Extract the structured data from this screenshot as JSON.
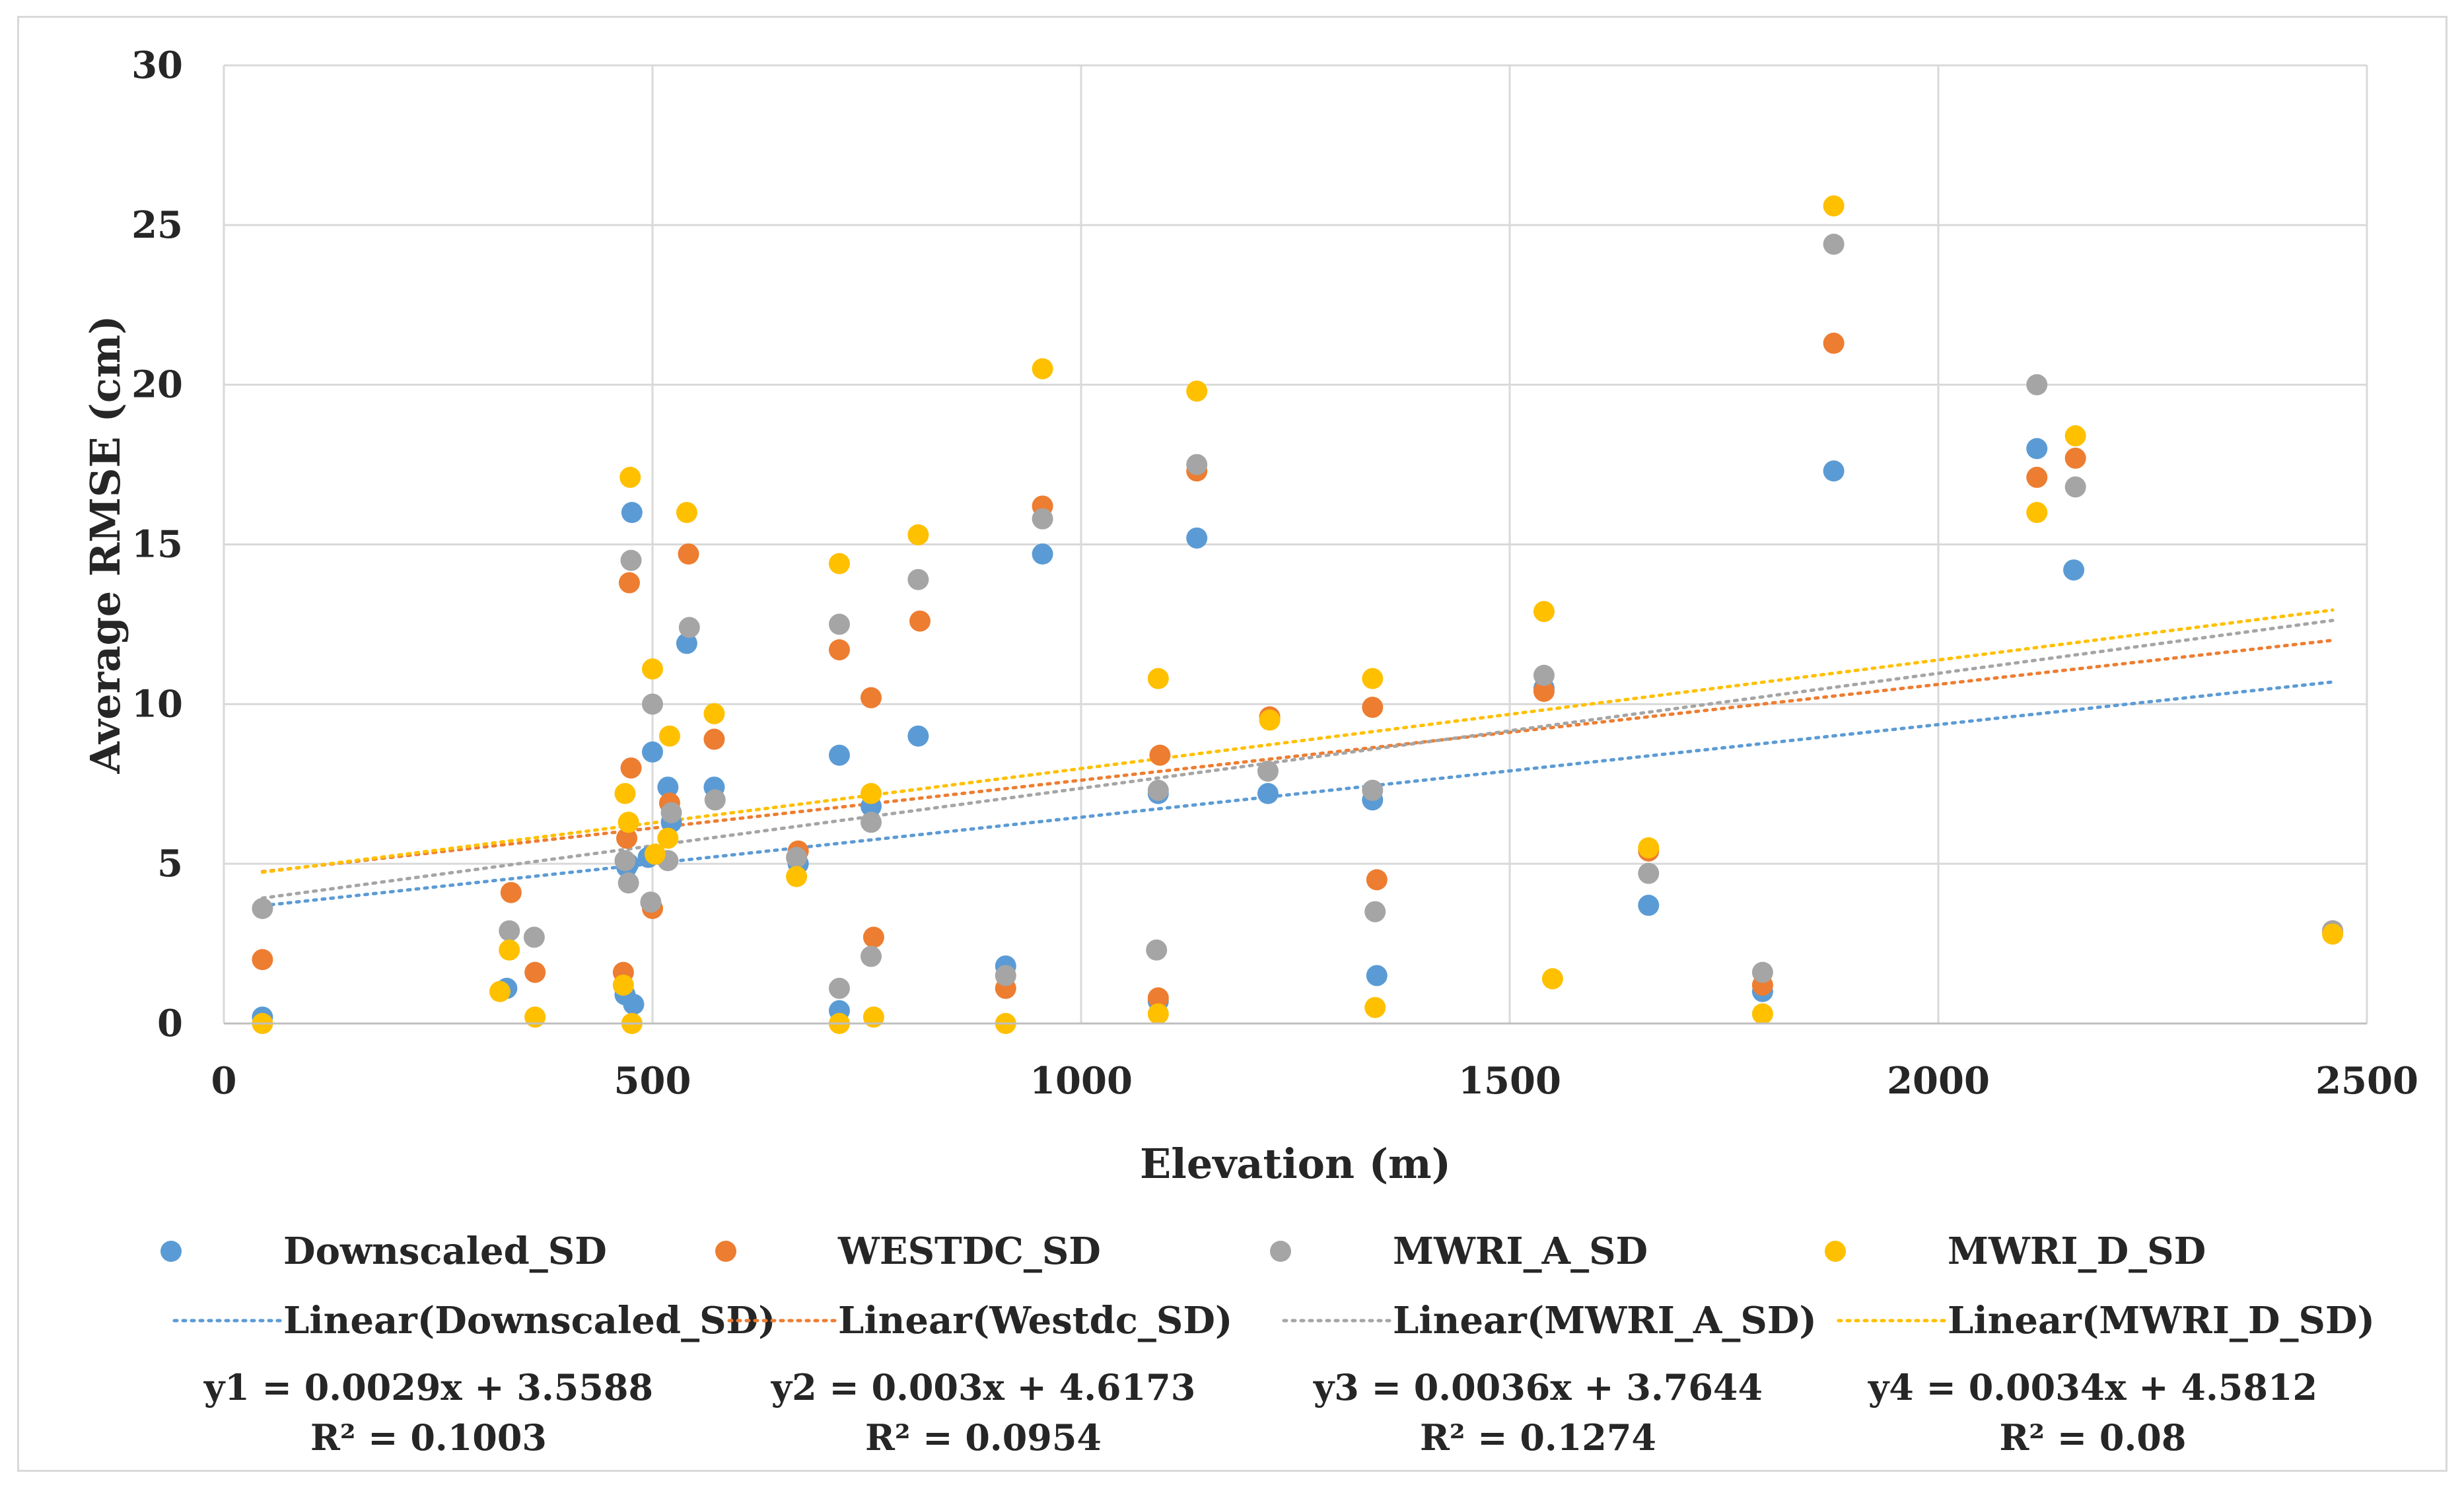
{
  "chart_data": {
    "type": "scatter",
    "title": "",
    "xlabel": "Elevation (m)",
    "ylabel": "Average RMSE (cm)",
    "xlim": [
      0,
      2500
    ],
    "ylim": [
      0,
      30
    ],
    "x_ticks": [
      0,
      500,
      1000,
      1500,
      2000,
      2500
    ],
    "y_ticks": [
      0,
      5,
      10,
      15,
      20,
      25,
      30
    ],
    "grid": true,
    "legend_position": "bottom",
    "series": [
      {
        "name": "Downscaled_SD",
        "color": "#5b9bd5",
        "trend_label": "Linear(Downscaled_SD)",
        "equation": "y1 = 0.0029x + 3.5588",
        "r2": "R² = 0.1003",
        "slope": 0.0029,
        "intercept": 3.5588,
        "points": [
          [
            45,
            0.2
          ],
          [
            330,
            1.1
          ],
          [
            468,
            0.9
          ],
          [
            470,
            4.9
          ],
          [
            472,
            5.0
          ],
          [
            476,
            16.0
          ],
          [
            478,
            0.6
          ],
          [
            495,
            5.2
          ],
          [
            500,
            8.5
          ],
          [
            518,
            7.4
          ],
          [
            522,
            6.3
          ],
          [
            540,
            11.9
          ],
          [
            572,
            7.4
          ],
          [
            670,
            5.0
          ],
          [
            718,
            0.4
          ],
          [
            718,
            8.4
          ],
          [
            755,
            6.8
          ],
          [
            810,
            9.0
          ],
          [
            912,
            1.8
          ],
          [
            955,
            14.7
          ],
          [
            1090,
            0.7
          ],
          [
            1090,
            7.2
          ],
          [
            1135,
            15.2
          ],
          [
            1218,
            7.2
          ],
          [
            1340,
            7.0
          ],
          [
            1345,
            1.5
          ],
          [
            1540,
            10.5
          ],
          [
            1662,
            3.7
          ],
          [
            1795,
            1.0
          ],
          [
            1878,
            17.3
          ],
          [
            2115,
            18.0
          ],
          [
            2158,
            14.2
          ],
          [
            2460,
            2.9
          ]
        ]
      },
      {
        "name": "WESTDC_SD",
        "color": "#ed7d31",
        "trend_label": "Linear(Westdc_SD)",
        "equation": "y2 = 0.003x + 4.6173",
        "r2": "R² = 0.0954",
        "slope": 0.003,
        "intercept": 4.6173,
        "points": [
          [
            45,
            2.0
          ],
          [
            335,
            4.1
          ],
          [
            363,
            1.6
          ],
          [
            466,
            1.6
          ],
          [
            470,
            5.8
          ],
          [
            473,
            13.8
          ],
          [
            475,
            8.0
          ],
          [
            500,
            3.6
          ],
          [
            520,
            6.9
          ],
          [
            542,
            14.7
          ],
          [
            572,
            8.9
          ],
          [
            670,
            5.4
          ],
          [
            718,
            11.7
          ],
          [
            755,
            10.2
          ],
          [
            758,
            2.7
          ],
          [
            812,
            12.6
          ],
          [
            912,
            1.1
          ],
          [
            955,
            16.2
          ],
          [
            1090,
            0.8
          ],
          [
            1092,
            8.4
          ],
          [
            1135,
            17.3
          ],
          [
            1220,
            9.6
          ],
          [
            1340,
            9.9
          ],
          [
            1345,
            4.5
          ],
          [
            1540,
            10.4
          ],
          [
            1662,
            5.4
          ],
          [
            1795,
            1.2
          ],
          [
            1878,
            21.3
          ],
          [
            2115,
            17.1
          ],
          [
            2160,
            17.7
          ],
          [
            2460,
            2.9
          ]
        ]
      },
      {
        "name": "MWRI_A_SD",
        "color": "#a5a5a5",
        "trend_label": "Linear(MWRI_A_SD)",
        "equation": "y3 = 0.0036x + 3.7644",
        "r2": "R² = 0.1274",
        "slope": 0.0036,
        "intercept": 3.7644,
        "points": [
          [
            45,
            3.6
          ],
          [
            333,
            2.9
          ],
          [
            362,
            2.7
          ],
          [
            468,
            5.1
          ],
          [
            472,
            4.4
          ],
          [
            475,
            14.5
          ],
          [
            498,
            3.8
          ],
          [
            500,
            10.0
          ],
          [
            518,
            5.1
          ],
          [
            522,
            6.6
          ],
          [
            543,
            12.4
          ],
          [
            573,
            7.0
          ],
          [
            668,
            5.2
          ],
          [
            718,
            1.1
          ],
          [
            718,
            12.5
          ],
          [
            755,
            6.3
          ],
          [
            755,
            2.1
          ],
          [
            810,
            13.9
          ],
          [
            912,
            1.5
          ],
          [
            955,
            15.8
          ],
          [
            1088,
            2.3
          ],
          [
            1090,
            7.3
          ],
          [
            1135,
            17.5
          ],
          [
            1218,
            7.9
          ],
          [
            1340,
            7.3
          ],
          [
            1343,
            3.5
          ],
          [
            1540,
            10.9
          ],
          [
            1662,
            4.7
          ],
          [
            1795,
            1.6
          ],
          [
            1878,
            24.4
          ],
          [
            2115,
            20.0
          ],
          [
            2160,
            16.8
          ],
          [
            2460,
            2.9
          ]
        ]
      },
      {
        "name": "MWRI_D_SD",
        "color": "#ffc000",
        "trend_label": "Linear(MWRI_D_SD)",
        "equation": "y4 = 0.0034x + 4.5812",
        "r2": "R² = 0.08",
        "slope": 0.0034,
        "intercept": 4.5812,
        "points": [
          [
            45,
            0.0
          ],
          [
            322,
            1.0
          ],
          [
            333,
            2.3
          ],
          [
            363,
            0.2
          ],
          [
            466,
            1.2
          ],
          [
            468,
            7.2
          ],
          [
            472,
            6.3
          ],
          [
            474,
            17.1
          ],
          [
            476,
            0.0
          ],
          [
            500,
            11.1
          ],
          [
            503,
            5.3
          ],
          [
            518,
            5.8
          ],
          [
            520,
            9.0
          ],
          [
            540,
            16.0
          ],
          [
            572,
            9.7
          ],
          [
            668,
            4.6
          ],
          [
            718,
            0.0
          ],
          [
            718,
            14.4
          ],
          [
            755,
            7.2
          ],
          [
            758,
            0.2
          ],
          [
            810,
            15.3
          ],
          [
            912,
            0.0
          ],
          [
            955,
            20.5
          ],
          [
            1090,
            0.3
          ],
          [
            1090,
            10.8
          ],
          [
            1135,
            19.8
          ],
          [
            1220,
            9.5
          ],
          [
            1343,
            0.5
          ],
          [
            1340,
            10.8
          ],
          [
            1540,
            12.9
          ],
          [
            1550,
            1.4
          ],
          [
            1662,
            5.5
          ],
          [
            1795,
            0.3
          ],
          [
            1878,
            25.6
          ],
          [
            2115,
            16.0
          ],
          [
            2160,
            18.4
          ],
          [
            2460,
            2.8
          ]
        ]
      }
    ]
  }
}
